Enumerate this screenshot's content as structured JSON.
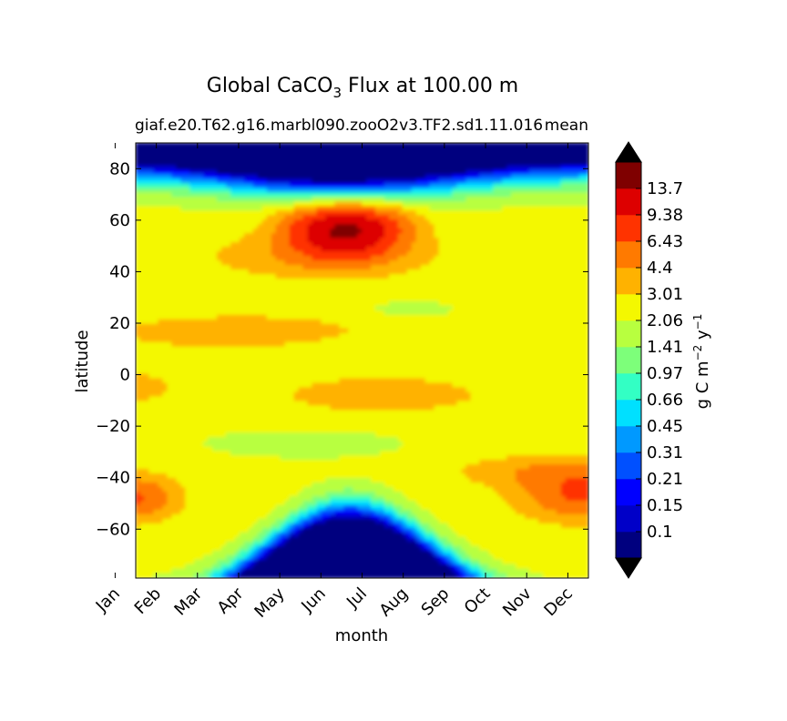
{
  "chart_data": {
    "type": "heatmap",
    "title_main": "Global CaCO",
    "title_sub": "3",
    "title_rest": " Flux at 100.00 m",
    "subtitle_left": "giaf.e20.T62.g16.marbl090.zooO2v3.TF2.sd1.11.016",
    "subtitle_right": "mean",
    "xlabel": "month",
    "ylabel": "latitude",
    "x_ticks": [
      "Jan",
      "Feb",
      "Mar",
      "Apr",
      "May",
      "Jun",
      "Jul",
      "Aug",
      "Sep",
      "Oct",
      "Nov",
      "Dec"
    ],
    "x_range": [
      0.5,
      11.5
    ],
    "y_ticks": [
      80,
      60,
      40,
      20,
      0,
      -20,
      -40,
      -60
    ],
    "y_range": [
      -79,
      90
    ],
    "colorbar": {
      "label_prefix": "g C m",
      "label_sup1": "−2",
      "label_mid": " y",
      "label_sup2": "−1",
      "levels": [
        "0.1",
        "0.15",
        "0.21",
        "0.31",
        "0.45",
        "0.66",
        "0.97",
        "1.41",
        "2.06",
        "3.01",
        "4.4",
        "6.43",
        "9.38",
        "13.7"
      ],
      "colors": [
        "#00007f",
        "#0000c8",
        "#0000ff",
        "#0050ff",
        "#0099ff",
        "#00e0ff",
        "#33ffc4",
        "#7dff7a",
        "#b8ff3f",
        "#f4f800",
        "#ffb200",
        "#ff7a00",
        "#ff3300",
        "#dd0000",
        "#7f0000"
      ],
      "extend_min_color": "#000000",
      "extend_max_color": "#000000"
    },
    "grid": false
  }
}
